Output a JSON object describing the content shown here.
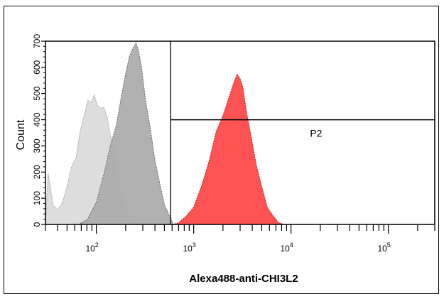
{
  "chart_data": {
    "type": "area",
    "xlabel": "Alexa488-anti-CHI3L2",
    "ylabel": "Count",
    "x_scale": "log",
    "xlim": [
      30,
      300000
    ],
    "ylim": [
      0,
      700
    ],
    "x_ticks": [
      {
        "value": 100,
        "base": "10",
        "exp": "2"
      },
      {
        "value": 1000,
        "base": "10",
        "exp": "3"
      },
      {
        "value": 10000,
        "base": "10",
        "exp": "4"
      },
      {
        "value": 100000,
        "base": "10",
        "exp": "5"
      }
    ],
    "y_ticks": [
      {
        "value": 0,
        "label": "0"
      },
      {
        "value": 100,
        "label": "100"
      },
      {
        "value": 200,
        "label": "200"
      },
      {
        "value": 300,
        "label": "300"
      },
      {
        "value": 400,
        "label": "400"
      },
      {
        "value": 500,
        "label": "500"
      },
      {
        "value": 600,
        "label": "600"
      },
      {
        "value": 700,
        "label": "700"
      }
    ],
    "series": [
      {
        "color": "#dcdcdc",
        "stroke": "#9a9a9a",
        "x": [
          30,
          32,
          36,
          40,
          45,
          50,
          56,
          62,
          68,
          75,
          82,
          88,
          95,
          102,
          110,
          120,
          130,
          142,
          155,
          170,
          190,
          215,
          245,
          280
        ],
        "y": [
          0,
          200,
          70,
          60,
          80,
          150,
          220,
          260,
          350,
          420,
          470,
          470,
          490,
          460,
          440,
          450,
          400,
          330,
          250,
          170,
          90,
          40,
          10,
          0
        ]
      },
      {
        "color": "#adadad",
        "stroke": "#5a5a5a",
        "x": [
          65,
          80,
          100,
          120,
          140,
          160,
          180,
          200,
          220,
          240,
          255,
          270,
          290,
          320,
          360,
          400,
          450,
          500,
          560,
          620
        ],
        "y": [
          0,
          20,
          80,
          200,
          300,
          380,
          480,
          580,
          640,
          680,
          690,
          670,
          600,
          480,
          360,
          250,
          150,
          80,
          30,
          0
        ]
      },
      {
        "color": "#ff4a4a",
        "stroke": "#c00000",
        "x": [
          600,
          700,
          850,
          1000,
          1200,
          1450,
          1700,
          2000,
          2300,
          2550,
          2800,
          3000,
          3200,
          3500,
          3900,
          4400,
          5000,
          5700,
          6500,
          7500,
          8500
        ],
        "y": [
          0,
          10,
          30,
          70,
          140,
          250,
          350,
          420,
          480,
          540,
          570,
          560,
          520,
          430,
          330,
          230,
          140,
          70,
          30,
          10,
          0
        ]
      }
    ],
    "gate": {
      "label": "P2",
      "x_from": 580,
      "y_line": 400
    }
  }
}
